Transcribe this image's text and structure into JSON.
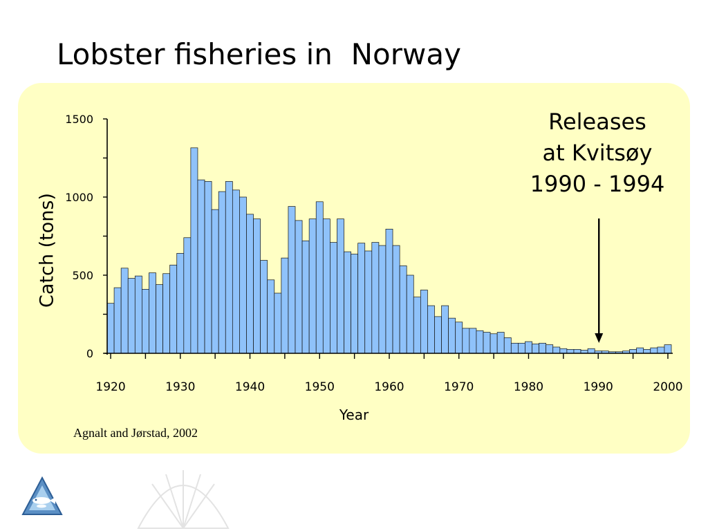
{
  "slide": {
    "title": "Lobster fisheries in  Norway",
    "citation": "Agnalt and Jørstad, 2002",
    "logo_icon": "fish-triangle-logo-icon"
  },
  "annotation": {
    "lines": [
      "Releases",
      "at Kvitsøy",
      "1990 - 1994"
    ],
    "arrow_target_year": 1990
  },
  "colors": {
    "panel": "#ffffc4",
    "bar_fill": "#8fc2fa",
    "bar_stroke": "#111111"
  },
  "chart_data": {
    "type": "bar",
    "title": "",
    "xlabel": "Year",
    "ylabel": "Catch (tons)",
    "xlim": [
      1920,
      2000
    ],
    "ylim": [
      0,
      1500
    ],
    "x_ticks": [
      1920,
      1930,
      1940,
      1950,
      1960,
      1970,
      1980,
      1990,
      2000
    ],
    "y_ticks": [
      0,
      500,
      1000,
      1500
    ],
    "grid": false,
    "legend": "none",
    "x": [
      1920,
      1921,
      1922,
      1923,
      1924,
      1925,
      1926,
      1927,
      1928,
      1929,
      1930,
      1931,
      1932,
      1933,
      1934,
      1935,
      1936,
      1937,
      1938,
      1939,
      1940,
      1941,
      1942,
      1943,
      1944,
      1945,
      1946,
      1947,
      1948,
      1949,
      1950,
      1951,
      1952,
      1953,
      1954,
      1955,
      1956,
      1957,
      1958,
      1959,
      1960,
      1961,
      1962,
      1963,
      1964,
      1965,
      1966,
      1967,
      1968,
      1969,
      1970,
      1971,
      1972,
      1973,
      1974,
      1975,
      1976,
      1977,
      1978,
      1979,
      1980,
      1981,
      1982,
      1983,
      1984,
      1985,
      1986,
      1987,
      1988,
      1989,
      1990,
      1991,
      1992,
      1993,
      1994,
      1995,
      1996,
      1997,
      1998,
      1999,
      2000
    ],
    "values": [
      320,
      420,
      545,
      480,
      495,
      410,
      515,
      440,
      510,
      565,
      640,
      740,
      1315,
      1110,
      1100,
      920,
      1035,
      1100,
      1045,
      1000,
      890,
      860,
      595,
      470,
      385,
      610,
      940,
      850,
      720,
      860,
      970,
      860,
      710,
      860,
      650,
      635,
      705,
      655,
      710,
      690,
      795,
      690,
      560,
      500,
      360,
      405,
      305,
      235,
      305,
      225,
      200,
      160,
      160,
      145,
      135,
      125,
      135,
      100,
      65,
      65,
      75,
      60,
      65,
      55,
      40,
      30,
      25,
      25,
      20,
      30,
      15,
      15,
      10,
      10,
      15,
      25,
      35,
      25,
      35,
      40,
      55
    ]
  }
}
